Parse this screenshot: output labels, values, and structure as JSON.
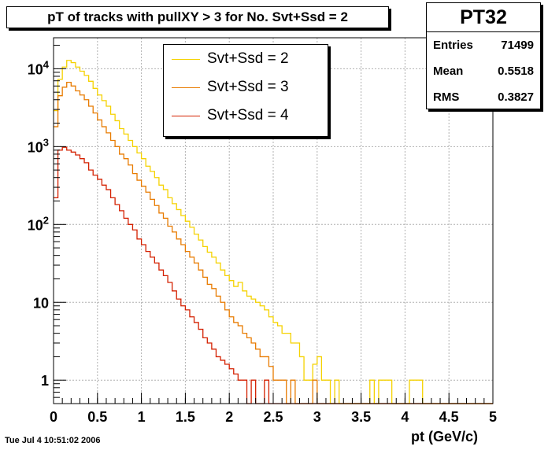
{
  "title": "pT of tracks with pullXY > 3 for No. Svt+Ssd = 2",
  "stats": {
    "name": "PT32",
    "rows": [
      {
        "label": "Entries",
        "value": "71499"
      },
      {
        "label": "Mean",
        "value": "0.5518"
      },
      {
        "label": "RMS",
        "value": "0.3827"
      }
    ]
  },
  "datestamp": "Tue Jul  4 10:51:02 2006",
  "chart_data": {
    "type": "line",
    "title": "pT of tracks with pullXY > 3 for No. Svt+Ssd = 2",
    "xlabel": "pt (GeV/c)",
    "ylabel": "",
    "xlim": [
      0,
      5
    ],
    "ylim": [
      0.5,
      25000
    ],
    "y_scale": "log",
    "grid": true,
    "legend": "top-center",
    "x_ticks": [
      {
        "v": 0,
        "label": "0"
      },
      {
        "v": 0.5,
        "label": "0.5"
      },
      {
        "v": 1,
        "label": "1"
      },
      {
        "v": 1.5,
        "label": "1.5"
      },
      {
        "v": 2,
        "label": "2"
      },
      {
        "v": 2.5,
        "label": "2.5"
      },
      {
        "v": 3,
        "label": "3"
      },
      {
        "v": 3.5,
        "label": "3.5"
      },
      {
        "v": 4,
        "label": "4"
      },
      {
        "v": 4.5,
        "label": "4.5"
      },
      {
        "v": 5,
        "label": "5"
      }
    ],
    "y_ticks": [
      {
        "v": 1,
        "base": "1",
        "exp": ""
      },
      {
        "v": 10,
        "base": "10",
        "exp": ""
      },
      {
        "v": 100,
        "base": "10",
        "exp": "2"
      },
      {
        "v": 1000,
        "base": "10",
        "exp": "3"
      },
      {
        "v": 10000,
        "base": "10",
        "exp": "4"
      }
    ],
    "bin_width": 0.05,
    "series": [
      {
        "name": "Svt+Ssd = 2",
        "color": "#f5d200",
        "values": [
          2900,
          7300,
          10500,
          12800,
          12000,
          10500,
          9300,
          8200,
          6900,
          5600,
          4600,
          3900,
          3300,
          2600,
          2150,
          1700,
          1450,
          1200,
          1000,
          830,
          700,
          560,
          480,
          400,
          320,
          280,
          220,
          185,
          155,
          130,
          110,
          92,
          75,
          63,
          52,
          44,
          38,
          32,
          26,
          22,
          19,
          16,
          18,
          14,
          12,
          11,
          10,
          9,
          8,
          6.5,
          5.5,
          5,
          4,
          4,
          3,
          3,
          2,
          1,
          1,
          1.6,
          2,
          1,
          1,
          0.5,
          1,
          0.5,
          0.5,
          0,
          0,
          0,
          0,
          0,
          1,
          0.5,
          1,
          1,
          1,
          0.5,
          0,
          0.5,
          0.5,
          1,
          1,
          1,
          0.5,
          0.5,
          0.5,
          0,
          0,
          0,
          0,
          0,
          0,
          0,
          0,
          0,
          0,
          0,
          0,
          0
        ]
      },
      {
        "name": "Svt+Ssd = 3",
        "color": "#e87b00",
        "values": [
          1800,
          4500,
          5800,
          6700,
          6000,
          5200,
          4600,
          4000,
          3300,
          2700,
          2200,
          1800,
          1500,
          1200,
          1000,
          800,
          700,
          580,
          450,
          370,
          310,
          260,
          210,
          175,
          140,
          120,
          95,
          80,
          65,
          55,
          45,
          38,
          32,
          26,
          21,
          17,
          15,
          12,
          10,
          8,
          6.5,
          5.5,
          5,
          4,
          3.5,
          3,
          2.5,
          2,
          2,
          1.5,
          1,
          1,
          1,
          0.5,
          1,
          0.5,
          0.5,
          0,
          0,
          1,
          0.5,
          0.5,
          0,
          0,
          0,
          0,
          0,
          0,
          0,
          0,
          0,
          0,
          0,
          0,
          0,
          0,
          0,
          0,
          0,
          0,
          0,
          0,
          0,
          0,
          0,
          0,
          0,
          0,
          0,
          0,
          0,
          0,
          0,
          0,
          0,
          0,
          0,
          0,
          0,
          0
        ]
      },
      {
        "name": "Svt+Ssd = 4",
        "color": "#d42000",
        "values": [
          220,
          900,
          980,
          900,
          850,
          780,
          700,
          620,
          500,
          430,
          380,
          320,
          280,
          220,
          180,
          150,
          120,
          100,
          85,
          65,
          55,
          45,
          38,
          32,
          26,
          22,
          18,
          14,
          11,
          9,
          8,
          6.5,
          5.5,
          4.5,
          3.5,
          3,
          2.5,
          2,
          1.8,
          1.6,
          1.4,
          1.2,
          1,
          1,
          0.5,
          1,
          0.5,
          0,
          1,
          0.5,
          0,
          0,
          0,
          0,
          0,
          0,
          0,
          0,
          0,
          0,
          0,
          0,
          0,
          0,
          0,
          0,
          0,
          0,
          0,
          0,
          0,
          0,
          0,
          0,
          0,
          0,
          0,
          0,
          0,
          0,
          0,
          0,
          0,
          0,
          0,
          0,
          0,
          0,
          0,
          0,
          0,
          0,
          0,
          0,
          0,
          0,
          0,
          0,
          0,
          0
        ]
      }
    ]
  }
}
